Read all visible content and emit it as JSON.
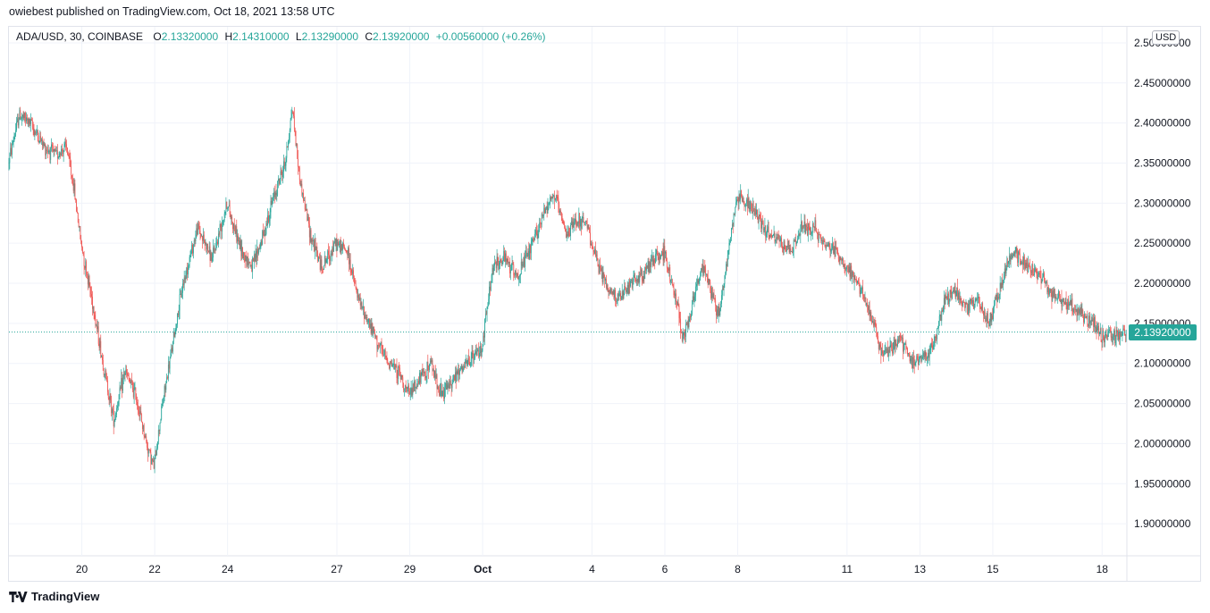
{
  "header": {
    "publisher_text": "owiebest published on TradingView.com, Oct 18, 2021 13:58 UTC"
  },
  "legend": {
    "symbol": "ADA/USD, 30, COINBASE",
    "o_label": "O",
    "o_value": "2.13320000",
    "h_label": "H",
    "h_value": "2.14310000",
    "l_label": "L",
    "l_value": "2.13290000",
    "c_label": "C",
    "c_value": "2.13920000",
    "change": "+0.00560000 (+0.26%)"
  },
  "currency_label": "USD",
  "last_price_label": "2.13920000",
  "footer": {
    "brand": "TradingView"
  },
  "colors": {
    "up": "#26a69a",
    "down": "#ef5350",
    "grid": "#f0f3fa",
    "axis_text": "#131722"
  },
  "chart_data": {
    "type": "candlestick",
    "symbol": "ADA/USD",
    "interval": "30",
    "exchange": "COINBASE",
    "ylim": [
      1.86,
      2.52
    ],
    "y_ticks": [
      "2.50000000",
      "2.45000000",
      "2.40000000",
      "2.35000000",
      "2.30000000",
      "2.25000000",
      "2.20000000",
      "2.15000000",
      "2.10000000",
      "2.05000000",
      "2.00000000",
      "1.95000000",
      "1.90000000"
    ],
    "x_ticks": [
      "20",
      "22",
      "24",
      "27",
      "29",
      "Oct",
      "4",
      "6",
      "8",
      "11",
      "13",
      "15",
      "18"
    ],
    "x_tick_days": [
      20,
      22,
      24,
      27,
      29,
      31,
      34,
      36,
      38,
      41,
      43,
      45,
      48
    ],
    "x_range_days": [
      18.0,
      48.68
    ],
    "last_price": 2.1392,
    "close_path_days": [
      18.0,
      18.3,
      18.6,
      19.0,
      19.3,
      19.6,
      19.8,
      20.0,
      20.3,
      20.6,
      20.9,
      21.2,
      21.5,
      21.8,
      22.0,
      22.2,
      22.5,
      22.8,
      23.2,
      23.6,
      24.0,
      24.4,
      24.7,
      25.0,
      25.3,
      25.6,
      25.8,
      26.0,
      26.3,
      26.6,
      27.0,
      27.3,
      27.6,
      28.0,
      28.3,
      28.7,
      29.0,
      29.3,
      29.6,
      29.9,
      30.2,
      30.6,
      31.0,
      31.3,
      31.6,
      32.0,
      32.4,
      32.8,
      33.0,
      33.3,
      33.6,
      33.9,
      34.2,
      34.5,
      34.8,
      35.1,
      35.4,
      35.7,
      36.0,
      36.2,
      36.4,
      36.5,
      36.7,
      36.9,
      37.1,
      37.3,
      37.5,
      37.7,
      38.0,
      38.3,
      38.6,
      38.9,
      39.2,
      39.5,
      39.8,
      40.1,
      40.4,
      40.7,
      41.0,
      41.3,
      41.6,
      41.8,
      42.0,
      42.2,
      42.5,
      42.8,
      43.1,
      43.4,
      43.7,
      44.0,
      44.3,
      44.6,
      44.9,
      45.2,
      45.4,
      45.6,
      45.8,
      46.0,
      46.3,
      46.6,
      46.9,
      47.2,
      47.5,
      47.8,
      48.0,
      48.2,
      48.4,
      48.6,
      48.68
    ],
    "close_path": [
      2.35,
      2.41,
      2.4,
      2.37,
      2.36,
      2.37,
      2.32,
      2.25,
      2.18,
      2.1,
      2.03,
      2.09,
      2.06,
      2.0,
      1.97,
      2.04,
      2.12,
      2.2,
      2.27,
      2.23,
      2.3,
      2.24,
      2.22,
      2.26,
      2.31,
      2.35,
      2.42,
      2.33,
      2.26,
      2.22,
      2.25,
      2.24,
      2.18,
      2.14,
      2.11,
      2.09,
      2.06,
      2.08,
      2.1,
      2.06,
      2.08,
      2.1,
      2.12,
      2.22,
      2.23,
      2.21,
      2.25,
      2.3,
      2.31,
      2.26,
      2.28,
      2.27,
      2.22,
      2.19,
      2.18,
      2.2,
      2.21,
      2.23,
      2.24,
      2.2,
      2.17,
      2.13,
      2.16,
      2.2,
      2.22,
      2.19,
      2.16,
      2.22,
      2.31,
      2.3,
      2.28,
      2.26,
      2.25,
      2.24,
      2.27,
      2.27,
      2.25,
      2.24,
      2.22,
      2.2,
      2.17,
      2.14,
      2.11,
      2.12,
      2.13,
      2.1,
      2.11,
      2.12,
      2.18,
      2.19,
      2.17,
      2.18,
      2.15,
      2.19,
      2.22,
      2.24,
      2.23,
      2.22,
      2.21,
      2.19,
      2.18,
      2.17,
      2.16,
      2.15,
      2.13,
      2.14,
      2.13,
      2.14,
      2.139
    ]
  }
}
